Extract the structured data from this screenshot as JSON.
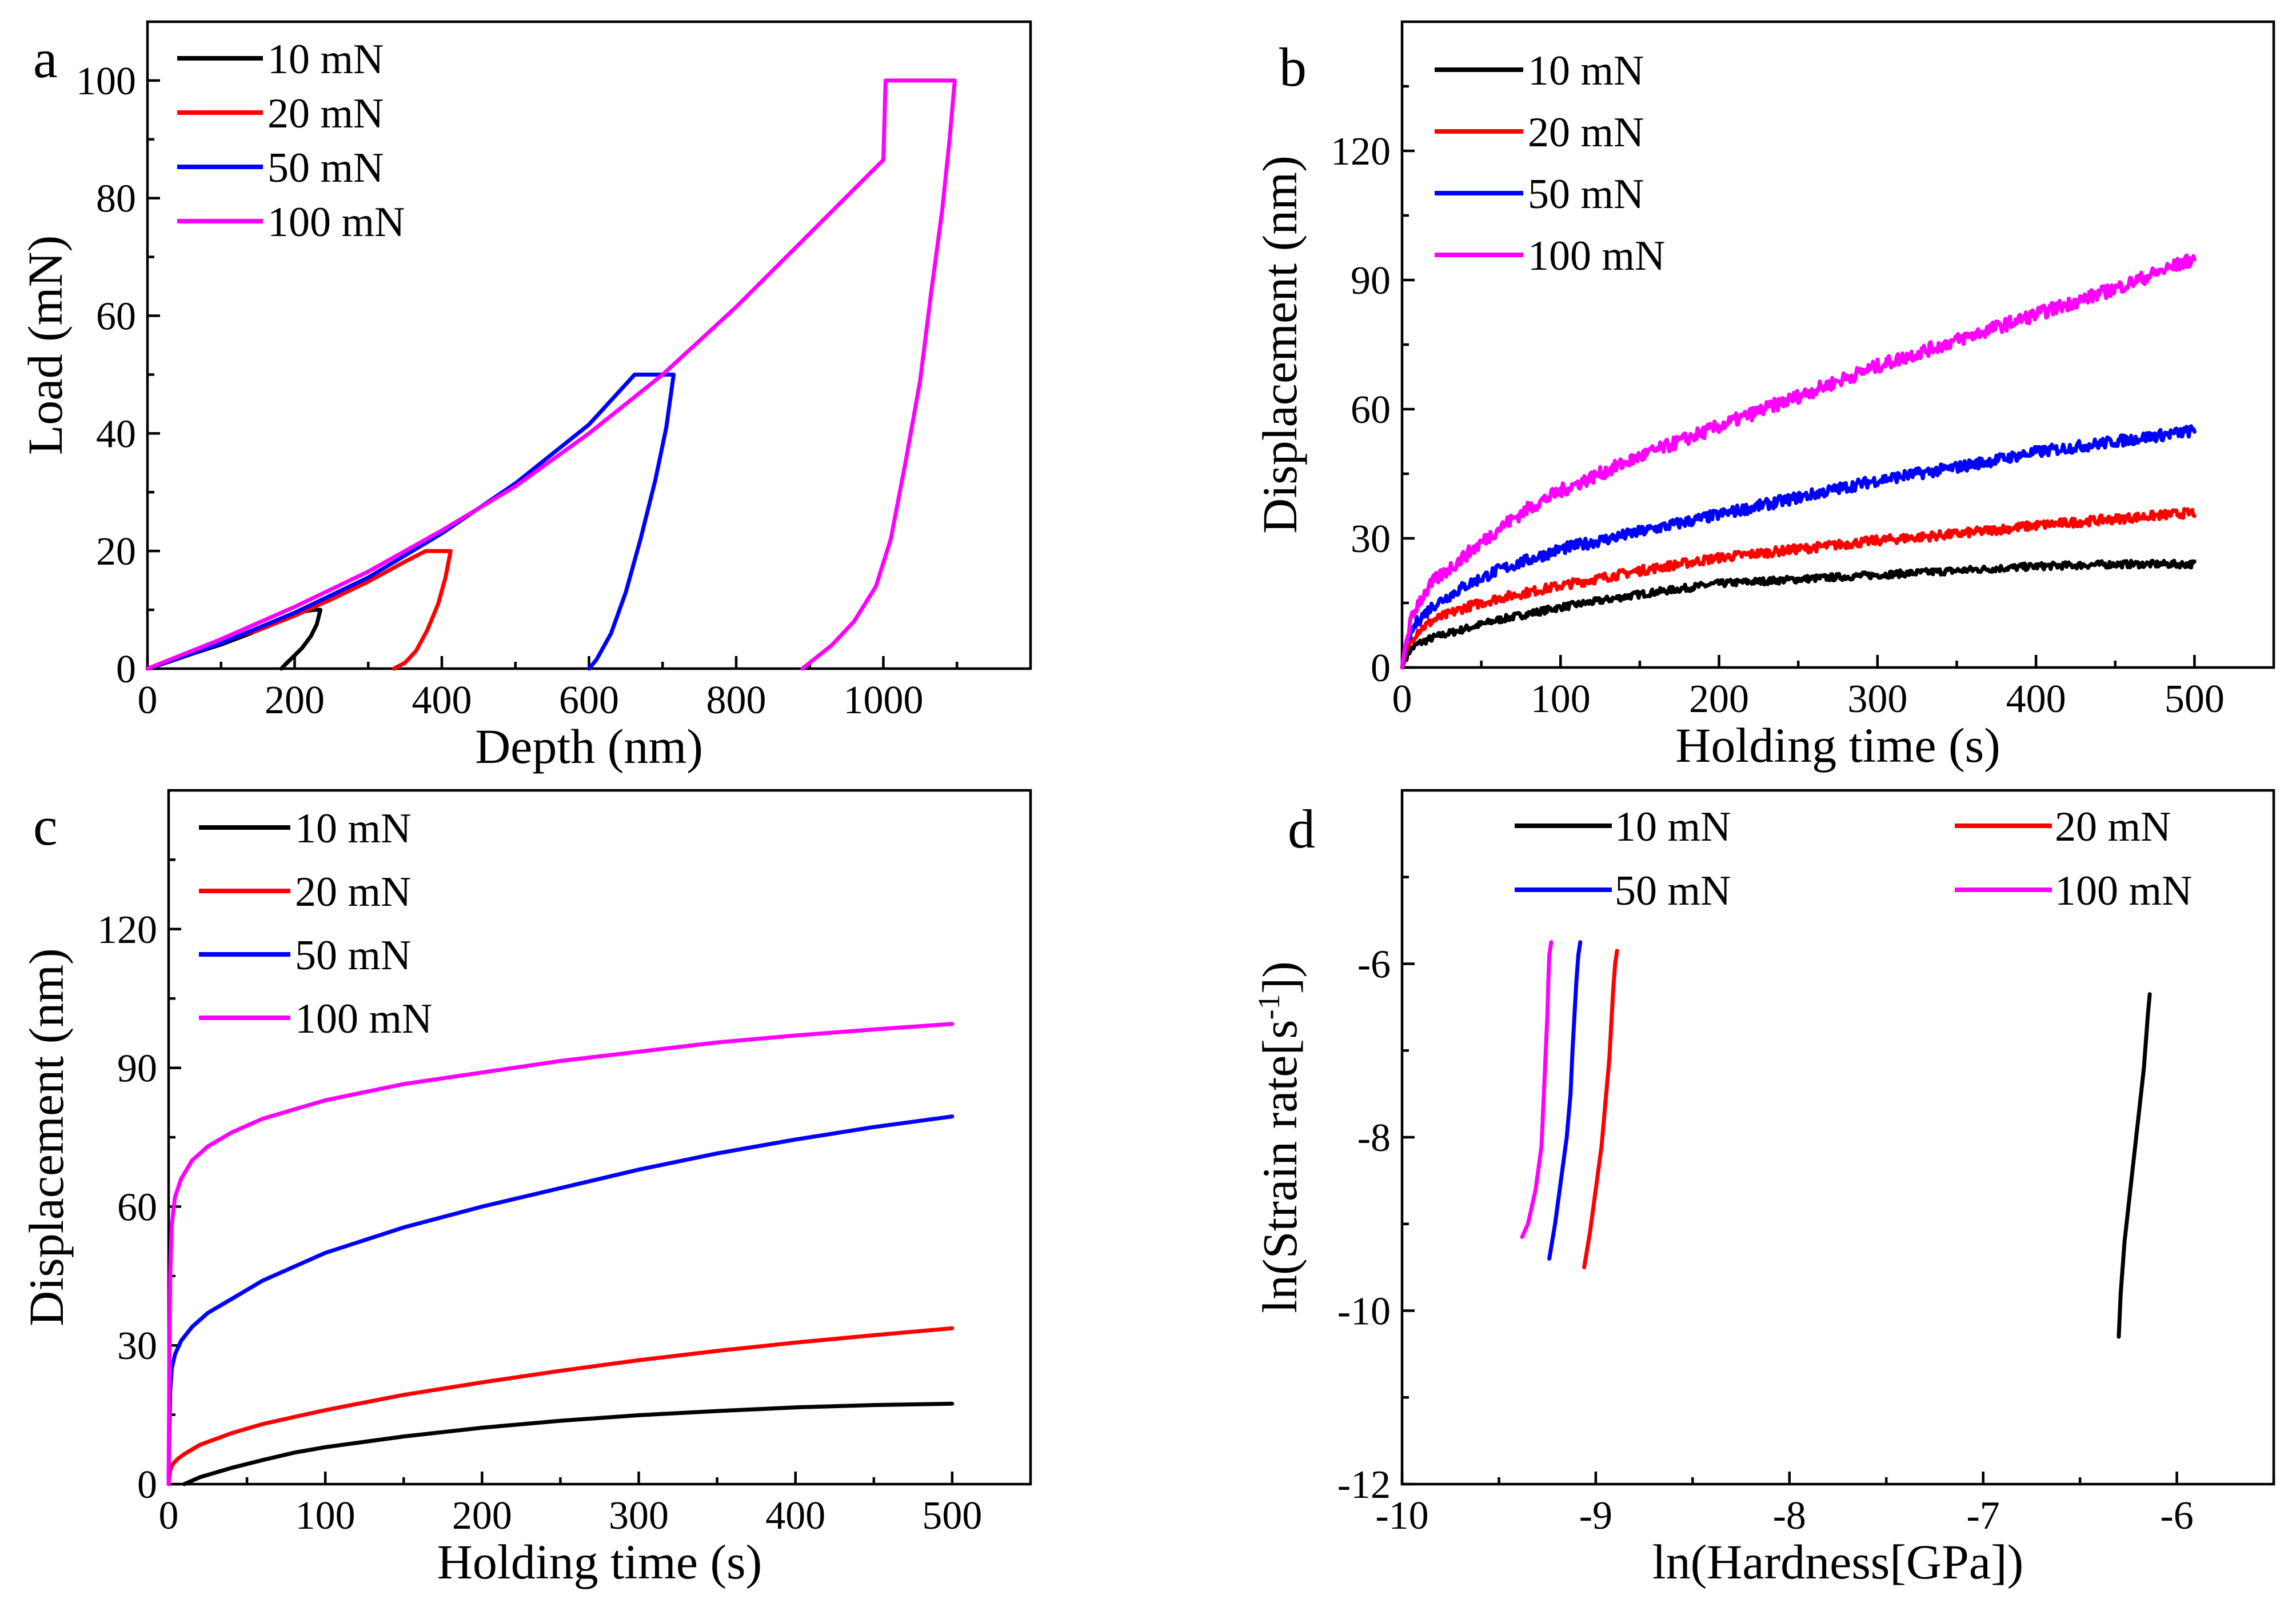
{
  "figure": {
    "description_panels": [
      "a",
      "b",
      "c",
      "d"
    ]
  },
  "chart_data": [
    {
      "id": "a",
      "type": "line",
      "panel_label": "a",
      "xlabel": "Depth (nm)",
      "ylabel": "Load (mN)",
      "xlim": [
        0,
        1200
      ],
      "ylim": [
        0,
        110
      ],
      "xticks": [
        0,
        200,
        400,
        600,
        800,
        1000
      ],
      "yticks": [
        0,
        20,
        40,
        60,
        80,
        100
      ],
      "xminor": [
        100,
        300,
        500,
        700,
        900,
        1100
      ],
      "yminor": [
        10,
        30,
        50,
        70,
        90
      ],
      "legend_position": "top-left",
      "series": [
        {
          "name": "10 mN",
          "color": "#000000",
          "x": [
            0,
            30,
            60,
            100,
            140,
            180,
            200,
            226,
            235,
            230,
            222,
            210,
            198,
            188,
            182
          ],
          "y": [
            0,
            1.2,
            2.5,
            4.1,
            6.0,
            8.2,
            9.5,
            10,
            10,
            7.5,
            5.5,
            3.5,
            2,
            0.8,
            0
          ]
        },
        {
          "name": "20 mN",
          "color": "#ff0000",
          "x": [
            0,
            50,
            100,
            150,
            200,
            250,
            300,
            350,
            378,
            412,
            405,
            395,
            380,
            365,
            350,
            335
          ],
          "y": [
            0,
            2.2,
            4.8,
            6.5,
            9,
            11.8,
            14.8,
            18.2,
            20,
            20,
            15.5,
            11,
            6.5,
            3,
            1,
            0
          ]
        },
        {
          "name": "50 mN",
          "color": "#0000ff",
          "x": [
            0,
            100,
            200,
            300,
            400,
            500,
            600,
            662,
            715,
            705,
            690,
            670,
            650,
            630,
            610,
            600
          ],
          "y": [
            0,
            4.3,
            9.5,
            15.5,
            23,
            31.5,
            41.5,
            50,
            50,
            41,
            32,
            22,
            13,
            6,
            1.5,
            0
          ]
        },
        {
          "name": "100 mN",
          "color": "#ff00ff",
          "x": [
            0,
            100,
            200,
            300,
            400,
            500,
            600,
            700,
            800,
            900,
            1000,
            1003,
            1097,
            1090,
            1080,
            1065,
            1050,
            1030,
            1010,
            990,
            960,
            930,
            890
          ],
          "y": [
            0,
            5,
            10.5,
            16.5,
            23.5,
            31,
            40,
            50,
            61.5,
            74,
            86.5,
            100,
            100,
            90,
            78,
            64,
            49,
            35,
            22,
            14,
            8,
            4,
            0
          ]
        }
      ]
    },
    {
      "id": "b",
      "type": "line",
      "panel_label": "b",
      "xlabel": "Holding time (s)",
      "ylabel": "Displacement (nm)",
      "xlim": [
        0,
        550
      ],
      "ylim": [
        0,
        150
      ],
      "xticks": [
        0,
        100,
        200,
        300,
        400,
        500
      ],
      "yticks": [
        0,
        30,
        60,
        90,
        120
      ],
      "xminor": [
        50,
        150,
        250,
        350,
        450
      ],
      "yminor": [
        15,
        45,
        75,
        105,
        135
      ],
      "legend_position": "top-left",
      "noisy": true,
      "series": [
        {
          "name": "10 mN",
          "color": "#000000",
          "x": [
            0,
            2,
            5,
            10,
            20,
            40,
            60,
            80,
            100,
            150,
            200,
            250,
            300,
            350,
            400,
            450,
            500
          ],
          "y": [
            0,
            2,
            4,
            5.5,
            7,
            9,
            11,
            12.5,
            14,
            17,
            19.5,
            20.5,
            21.5,
            22.5,
            23.5,
            24,
            24
          ]
        },
        {
          "name": "20 mN",
          "color": "#ff0000",
          "x": [
            0,
            2,
            5,
            10,
            20,
            40,
            60,
            80,
            100,
            150,
            200,
            250,
            300,
            350,
            400,
            450,
            500
          ],
          "y": [
            0,
            3,
            6,
            8.5,
            11,
            14,
            16,
            17.5,
            19,
            22.5,
            25.5,
            27.5,
            29.5,
            31,
            33,
            34.5,
            36
          ]
        },
        {
          "name": "50 mN",
          "color": "#0000ff",
          "x": [
            0,
            2,
            5,
            10,
            20,
            40,
            60,
            80,
            100,
            150,
            200,
            250,
            300,
            350,
            400,
            450,
            500
          ],
          "y": [
            0,
            4,
            7.5,
            11,
            14.5,
            19,
            22.5,
            25,
            27.5,
            31.5,
            35.5,
            39.5,
            43.5,
            46.5,
            50,
            52.5,
            55
          ]
        },
        {
          "name": "100 mN",
          "color": "#ff00ff",
          "x": [
            0,
            2,
            5,
            10,
            20,
            40,
            60,
            80,
            100,
            150,
            200,
            250,
            300,
            350,
            400,
            450,
            500
          ],
          "y": [
            0,
            5,
            10,
            15,
            20,
            26,
            32,
            37,
            41,
            49,
            56,
            63,
            70,
            76,
            82,
            88,
            95
          ]
        }
      ]
    },
    {
      "id": "c",
      "type": "line",
      "panel_label": "c",
      "xlabel": "Holding time (s)",
      "ylabel": "Displacement (nm)",
      "xlim": [
        0,
        550
      ],
      "ylim": [
        0,
        150
      ],
      "xticks": [
        0,
        100,
        200,
        300,
        400,
        500
      ],
      "yticks": [
        0,
        30,
        60,
        90,
        120
      ],
      "xminor": [
        50,
        150,
        250,
        350,
        450
      ],
      "yminor": [
        15,
        45,
        75,
        105,
        135
      ],
      "legend_position": "top-left",
      "series": [
        {
          "name": "10 mN",
          "color": "#000000",
          "x": [
            10,
            20,
            40,
            60,
            80,
            100,
            150,
            200,
            250,
            300,
            350,
            400,
            450,
            500
          ],
          "y": [
            0,
            1.5,
            3.5,
            5.2,
            6.8,
            8,
            10.3,
            12.2,
            13.7,
            14.9,
            15.8,
            16.6,
            17.1,
            17.4
          ]
        },
        {
          "name": "20 mN",
          "color": "#ff0000",
          "x": [
            0,
            1,
            3,
            6,
            10,
            20,
            40,
            60,
            80,
            100,
            150,
            200,
            250,
            300,
            350,
            400,
            450,
            500
          ],
          "y": [
            0,
            3,
            4.5,
            5.5,
            6.5,
            8.5,
            11,
            13,
            14.5,
            16,
            19.3,
            22,
            24.5,
            26.8,
            28.8,
            30.6,
            32.2,
            33.7
          ]
        },
        {
          "name": "50 mN",
          "color": "#0000ff",
          "x": [
            0,
            0.5,
            1,
            2,
            4,
            8,
            15,
            25,
            40,
            60,
            80,
            100,
            150,
            200,
            250,
            300,
            350,
            400,
            450,
            500
          ],
          "y": [
            0,
            12,
            20,
            25,
            28,
            31,
            34,
            37,
            40,
            44,
            47,
            50,
            55.5,
            60,
            64,
            68,
            71.5,
            74.5,
            77.2,
            79.5
          ]
        },
        {
          "name": "100 mN",
          "color": "#ff00ff",
          "x": [
            0,
            0.5,
            1,
            2,
            4,
            8,
            15,
            25,
            40,
            60,
            80,
            100,
            150,
            200,
            250,
            300,
            350,
            400,
            450,
            500
          ],
          "y": [
            0,
            28,
            45,
            56,
            62,
            66,
            70,
            73,
            76,
            79,
            81,
            83,
            86.5,
            89,
            91.5,
            93.5,
            95.5,
            97,
            98.3,
            99.5
          ]
        }
      ]
    },
    {
      "id": "d",
      "type": "line",
      "panel_label": "d",
      "xlabel": "ln(Hardness[GPa])",
      "ylabel_parts": [
        "ln(Strain rate[s",
        "-1",
        "])"
      ],
      "xlim": [
        -10,
        -5.5
      ],
      "ylim": [
        -12,
        -4
      ],
      "xticks": [
        -10,
        -9,
        -8,
        -7,
        -6
      ],
      "yticks": [
        -12,
        -10,
        -8,
        -6
      ],
      "xminor": [
        -9.5,
        -8.5,
        -7.5,
        -6.5,
        -5.5
      ],
      "yminor": [
        -11,
        -9,
        -7,
        -5
      ],
      "legend_position": "top",
      "legend_columns": 2,
      "series": [
        {
          "name": "10 mN",
          "color": "#000000",
          "x": [
            -6.3,
            -6.29,
            -6.27,
            -6.24,
            -6.21,
            -6.19,
            -6.17,
            -6.16,
            -6.15,
            -6.14
          ],
          "y": [
            -10.3,
            -9.8,
            -9.2,
            -8.6,
            -8.0,
            -7.6,
            -7.2,
            -6.9,
            -6.6,
            -6.35
          ]
        },
        {
          "name": "20 mN",
          "color": "#ff0000",
          "x": [
            -9.06,
            -9.03,
            -9.0,
            -8.97,
            -8.95,
            -8.93,
            -8.92,
            -8.91,
            -8.9,
            -8.89
          ],
          "y": [
            -9.5,
            -9.1,
            -8.6,
            -8.1,
            -7.6,
            -7.1,
            -6.7,
            -6.3,
            -6.0,
            -5.85
          ]
        },
        {
          "name": "50 mN",
          "color": "#0000ff",
          "x": [
            -9.24,
            -9.21,
            -9.18,
            -9.15,
            -9.13,
            -9.12,
            -9.11,
            -9.1,
            -9.09,
            -9.08
          ],
          "y": [
            -9.4,
            -9.0,
            -8.5,
            -8.0,
            -7.5,
            -7.0,
            -6.6,
            -6.2,
            -5.9,
            -5.75
          ]
        },
        {
          "name": "100 mN",
          "color": "#ff00ff",
          "x": [
            -9.38,
            -9.35,
            -9.31,
            -9.28,
            -9.27,
            -9.26,
            -9.25,
            -9.245,
            -9.24,
            -9.23
          ],
          "y": [
            -9.15,
            -9.0,
            -8.6,
            -8.1,
            -7.6,
            -7.1,
            -6.6,
            -6.2,
            -5.9,
            -5.75
          ]
        }
      ]
    }
  ]
}
